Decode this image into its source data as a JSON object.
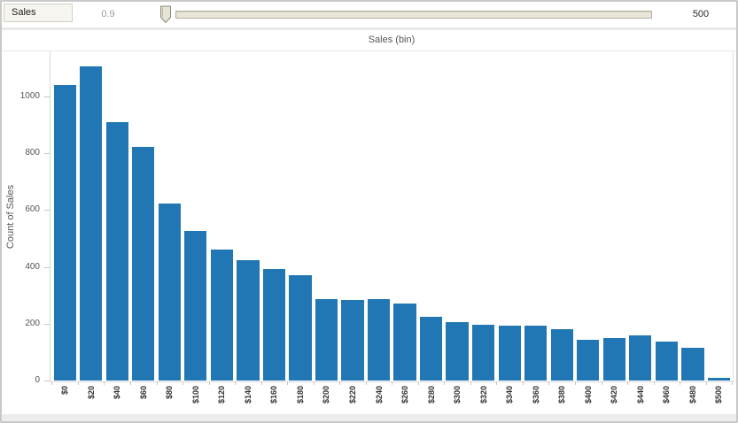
{
  "filter_bar": {
    "field_label": "Sales",
    "min_value": "0.9",
    "max_value": "500"
  },
  "chart_data": {
    "type": "bar",
    "title": "Sales (bin)",
    "xlabel": "",
    "ylabel": "Count of Sales",
    "categories": [
      "$0",
      "$20",
      "$40",
      "$60",
      "$80",
      "$100",
      "$120",
      "$140",
      "$160",
      "$180",
      "$200",
      "$220",
      "$240",
      "$260",
      "$280",
      "$300",
      "$320",
      "$340",
      "$360",
      "$380",
      "$400",
      "$420",
      "$440",
      "$460",
      "$480",
      "$500"
    ],
    "values": [
      1040,
      1105,
      910,
      822,
      623,
      527,
      460,
      424,
      394,
      371,
      287,
      283,
      287,
      271,
      224,
      206,
      196,
      193,
      194,
      181,
      143,
      150,
      159,
      138,
      116,
      8
    ],
    "y_ticks": [
      0,
      200,
      400,
      600,
      800,
      1000
    ],
    "ylim": [
      0,
      1165
    ],
    "grid": "off",
    "legend": "none",
    "bar_color": "#2077b4"
  },
  "colors": {
    "bar": "#2077b4",
    "track_fill": "#eae7da",
    "thumb_fill": "#e7e3d6",
    "thumb_stroke": "#8b8b7b"
  }
}
